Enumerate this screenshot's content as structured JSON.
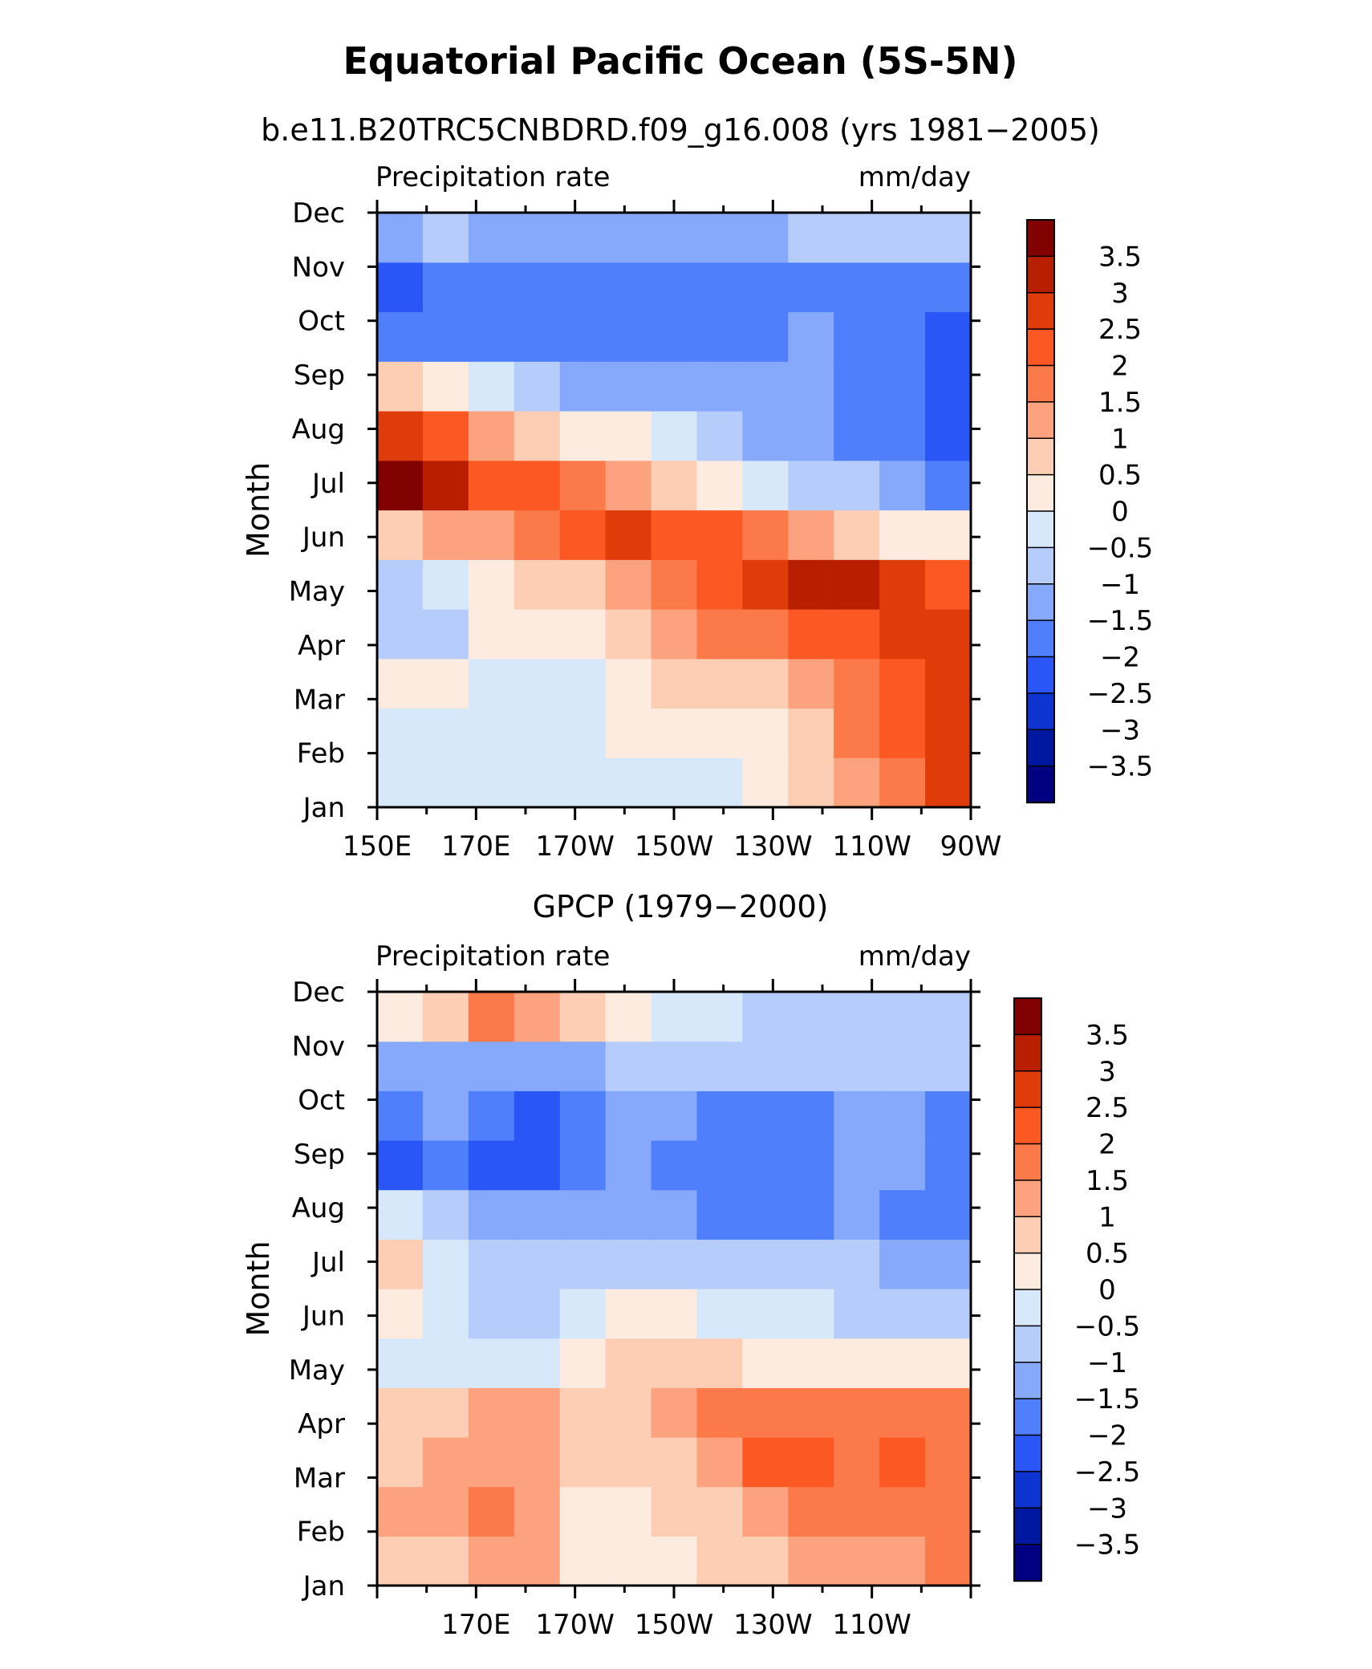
{
  "title": "Equatorial Pacific Ocean (5S-5N)",
  "colorbar_levels": [
    "3.5",
    "3",
    "2.5",
    "2",
    "1.5",
    "1",
    "0.5",
    "0",
    "−0.5",
    "−1",
    "−1.5",
    "−2",
    "−2.5",
    "−3",
    "−3.5"
  ],
  "colorbar_colors": [
    "#810000",
    "#b71f00",
    "#e03c0b",
    "#fb5823",
    "#fc7a49",
    "#fca27e",
    "#fdcdb4",
    "#fdebe0",
    "#d7e8fb",
    "#b6cdfb",
    "#86a9fb",
    "#4f7ffb",
    "#2a55f7",
    "#0d33d1",
    "#00179f",
    "#000080"
  ],
  "chart_data": [
    {
      "type": "heatmap",
      "title": "b.e11.B20TRC5CNBDRD.f09_g16.008 (yrs 1981−2005)",
      "left_label": "Precipitation rate",
      "right_label": "mm/day",
      "ylabel": "Month",
      "x_ticks": [
        "150E",
        "170E",
        "170W",
        "150W",
        "130W",
        "110W",
        "90W"
      ],
      "y_ticks": [
        "Jan",
        "Feb",
        "Mar",
        "Apr",
        "May",
        "Jun",
        "Jul",
        "Aug",
        "Sep",
        "Oct",
        "Nov",
        "Dec"
      ],
      "x_range": [
        150,
        270
      ],
      "unit": "mm/day",
      "x": [
        150,
        160,
        170,
        180,
        190,
        200,
        210,
        220,
        230,
        240,
        250,
        260,
        270
      ],
      "y": [
        "Jan",
        "Feb",
        "Mar",
        "Apr",
        "May",
        "Jun",
        "Jul",
        "Aug",
        "Sep",
        "Oct",
        "Nov",
        "Dec"
      ],
      "values": [
        [
          -0.3,
          -0.3,
          -0.2,
          -0.2,
          -0.2,
          -0.1,
          0.0,
          0.0,
          0.3,
          0.6,
          1.4,
          2.0,
          2.8
        ],
        [
          -0.2,
          -0.2,
          -0.2,
          -0.2,
          -0.1,
          0.1,
          0.3,
          0.4,
          0.5,
          0.9,
          1.6,
          2.4,
          3.0
        ],
        [
          0.2,
          0.1,
          -0.2,
          -0.2,
          -0.1,
          0.3,
          0.6,
          0.8,
          1.0,
          1.3,
          1.8,
          2.4,
          2.8
        ],
        [
          -0.6,
          -0.6,
          0.1,
          0.1,
          0.4,
          0.8,
          1.2,
          1.6,
          1.9,
          2.1,
          2.4,
          2.7,
          2.8
        ],
        [
          -0.6,
          -0.4,
          0.5,
          0.7,
          1.0,
          1.5,
          2.0,
          2.5,
          2.9,
          3.3,
          3.2,
          2.6,
          2.2
        ],
        [
          1.0,
          1.3,
          1.5,
          1.9,
          2.3,
          2.6,
          2.4,
          2.1,
          1.8,
          1.4,
          1.0,
          0.5,
          0.1
        ],
        [
          3.6,
          3.1,
          2.1,
          2.1,
          1.8,
          1.5,
          1.0,
          0.5,
          0.0,
          -0.5,
          -0.9,
          -1.2,
          -1.5
        ],
        [
          2.9,
          2.3,
          1.5,
          0.9,
          0.4,
          0.1,
          -0.4,
          -0.7,
          -1.0,
          -1.2,
          -1.5,
          -1.9,
          -2.2
        ],
        [
          0.6,
          0.2,
          -0.4,
          -0.7,
          -1.0,
          -1.2,
          -1.4,
          -1.4,
          -1.3,
          -1.4,
          -1.7,
          -1.9,
          -2.2
        ],
        [
          -1.6,
          -1.7,
          -1.6,
          -1.5,
          -1.6,
          -1.8,
          -1.9,
          -1.8,
          -1.5,
          -1.4,
          -1.6,
          -1.9,
          -2.1
        ],
        [
          -2.0,
          -1.9,
          -1.8,
          -1.5,
          -1.6,
          -1.9,
          -1.9,
          -1.8,
          -1.5,
          -1.5,
          -1.6,
          -1.8,
          -1.8
        ],
        [
          -1.1,
          -0.9,
          -1.0,
          -1.2,
          -1.3,
          -1.3,
          -1.2,
          -1.1,
          -1.0,
          -0.9,
          -0.8,
          -0.7,
          -0.5
        ]
      ],
      "colorbar": [
        "3.5",
        "3",
        "2.5",
        "2",
        "1.5",
        "1",
        "0.5",
        "0",
        "−0.5",
        "−1",
        "−1.5",
        "−2",
        "−2.5",
        "−3",
        "−3.5"
      ]
    },
    {
      "type": "heatmap",
      "title": "GPCP (1979−2000)",
      "left_label": "Precipitation rate",
      "right_label": "mm/day",
      "ylabel": "Month",
      "x_ticks": [
        "170E",
        "170W",
        "150W",
        "130W",
        "110W"
      ],
      "y_ticks": [
        "Jan",
        "Feb",
        "Mar",
        "Apr",
        "May",
        "Jun",
        "Jul",
        "Aug",
        "Sep",
        "Oct",
        "Nov",
        "Dec"
      ],
      "x_range": [
        150,
        270
      ],
      "unit": "mm/day",
      "x": [
        150,
        160,
        170,
        180,
        190,
        200,
        210,
        220,
        230,
        240,
        250,
        260,
        270
      ],
      "y": [
        "Jan",
        "Feb",
        "Mar",
        "Apr",
        "May",
        "Jun",
        "Jul",
        "Aug",
        "Sep",
        "Oct",
        "Nov",
        "Dec"
      ],
      "values": [
        [
          0.7,
          1.0,
          1.1,
          1.3,
          0.5,
          0.3,
          0.4,
          0.7,
          0.9,
          1.1,
          1.3,
          1.5,
          1.7
        ],
        [
          1.1,
          1.3,
          1.6,
          1.4,
          0.4,
          0.4,
          0.6,
          0.8,
          1.2,
          1.6,
          1.7,
          1.9,
          1.9
        ],
        [
          1.0,
          1.4,
          1.2,
          1.4,
          0.7,
          0.6,
          0.9,
          1.4,
          2.1,
          2.1,
          1.9,
          2.1,
          1.9
        ],
        [
          0.8,
          0.8,
          1.2,
          1.2,
          0.8,
          0.9,
          1.2,
          1.7,
          1.9,
          1.8,
          1.7,
          1.8,
          1.7
        ],
        [
          -0.2,
          -0.3,
          -0.3,
          -0.1,
          0.4,
          0.7,
          0.6,
          0.6,
          0.5,
          0.5,
          0.4,
          0.3,
          0.3
        ],
        [
          0.5,
          -0.3,
          -0.5,
          -0.8,
          -0.4,
          0.4,
          0.4,
          0.0,
          -0.2,
          -0.3,
          -0.6,
          -0.6,
          -0.5
        ],
        [
          0.6,
          -0.3,
          -0.6,
          -0.9,
          -0.8,
          -0.7,
          -0.5,
          -0.5,
          -0.7,
          -0.7,
          -0.9,
          -1.2,
          -1.3
        ],
        [
          -0.1,
          -0.6,
          -1.2,
          -1.2,
          -1.3,
          -1.3,
          -1.4,
          -1.7,
          -1.7,
          -1.6,
          -1.4,
          -1.6,
          -1.7
        ],
        [
          -2.0,
          -1.7,
          -2.1,
          -2.2,
          -1.6,
          -1.4,
          -1.6,
          -1.8,
          -1.8,
          -1.6,
          -1.2,
          -1.2,
          -1.5
        ],
        [
          -1.5,
          -1.4,
          -1.8,
          -2.0,
          -1.6,
          -1.1,
          -1.1,
          -1.6,
          -1.6,
          -1.5,
          -1.2,
          -1.1,
          -1.6
        ],
        [
          -1.3,
          -1.1,
          -1.2,
          -1.4,
          -1.2,
          -0.8,
          -0.6,
          -0.9,
          -0.9,
          -0.8,
          -0.8,
          -0.7,
          -0.9
        ],
        [
          0.4,
          0.8,
          1.6,
          1.3,
          0.6,
          0.1,
          -0.3,
          -0.4,
          -0.5,
          -0.6,
          -0.6,
          -0.7,
          -0.8
        ]
      ],
      "colorbar": [
        "3.5",
        "3",
        "2.5",
        "2",
        "1.5",
        "1",
        "0.5",
        "0",
        "−0.5",
        "−1",
        "−1.5",
        "−2",
        "−2.5",
        "−3",
        "−3.5"
      ]
    }
  ]
}
